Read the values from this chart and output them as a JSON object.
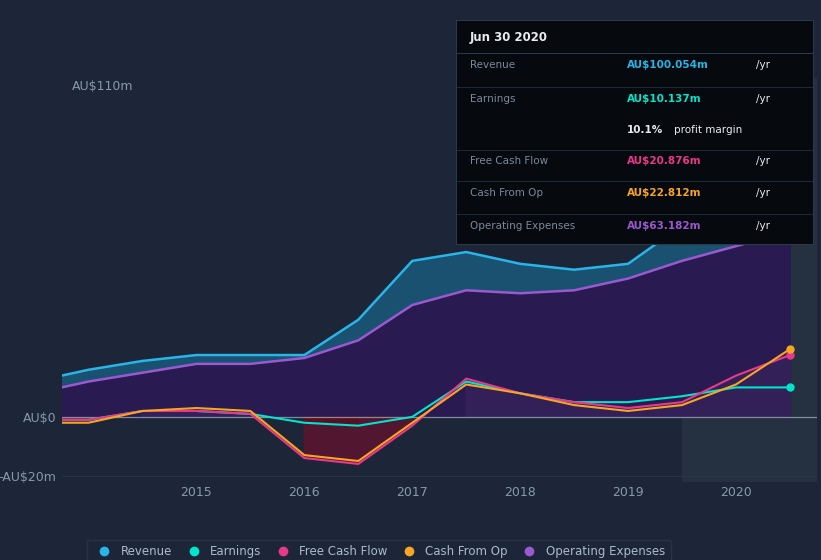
{
  "background_color": "#1c2638",
  "plot_bg_color": "#1c2638",
  "highlight_bg_color": "#253040",
  "grid_color": "#2a3a4a",
  "zero_line_color": "#8899aa",
  "years": [
    2013.75,
    2014.0,
    2014.5,
    2015.0,
    2015.5,
    2016.0,
    2016.5,
    2017.0,
    2017.5,
    2018.0,
    2018.5,
    2019.0,
    2019.5,
    2020.0,
    2020.5
  ],
  "revenue": [
    14,
    16,
    19,
    21,
    21,
    21,
    33,
    53,
    56,
    52,
    50,
    52,
    65,
    90,
    100
  ],
  "earnings": [
    -1,
    -1,
    2,
    2,
    1,
    -2,
    -3,
    0,
    12,
    8,
    5,
    5,
    7,
    10,
    10
  ],
  "free_cash": [
    -1,
    -1,
    2,
    2,
    1,
    -14,
    -16,
    -3,
    13,
    8,
    5,
    3,
    5,
    14,
    21
  ],
  "cash_op": [
    -2,
    -2,
    2,
    3,
    2,
    -13,
    -15,
    -2,
    11,
    8,
    4,
    2,
    4,
    11,
    23
  ],
  "op_expenses": [
    10,
    12,
    15,
    18,
    18,
    20,
    26,
    38,
    43,
    42,
    43,
    47,
    53,
    58,
    63
  ],
  "ylim": [
    -22,
    115
  ],
  "revenue_color": "#29b5e8",
  "earnings_color": "#00e5cc",
  "free_cash_color": "#e8388a",
  "cash_op_color": "#f5a623",
  "op_expenses_color": "#9b59d0",
  "tooltip_date": "Jun 30 2020",
  "tooltip_revenue_label": "Revenue",
  "tooltip_revenue_val": "AU$100.054m",
  "tooltip_earnings_label": "Earnings",
  "tooltip_earnings_val": "AU$10.137m",
  "tooltip_margin": "10.1%",
  "tooltip_fcf_label": "Free Cash Flow",
  "tooltip_fcf_val": "AU$20.876m",
  "tooltip_cashop_label": "Cash From Op",
  "tooltip_cashop_val": "AU$22.812m",
  "tooltip_opex_label": "Operating Expenses",
  "tooltip_opex_val": "AU$63.182m",
  "legend_items": [
    "Revenue",
    "Earnings",
    "Free Cash Flow",
    "Cash From Op",
    "Operating Expenses"
  ],
  "legend_colors": [
    "#29b5e8",
    "#00e5cc",
    "#e8388a",
    "#f5a623",
    "#9b59d0"
  ],
  "xmin": 2013.75,
  "xmax": 2020.75,
  "xticks": [
    2015,
    2016,
    2017,
    2018,
    2019,
    2020
  ],
  "highlight_start": 2019.5
}
